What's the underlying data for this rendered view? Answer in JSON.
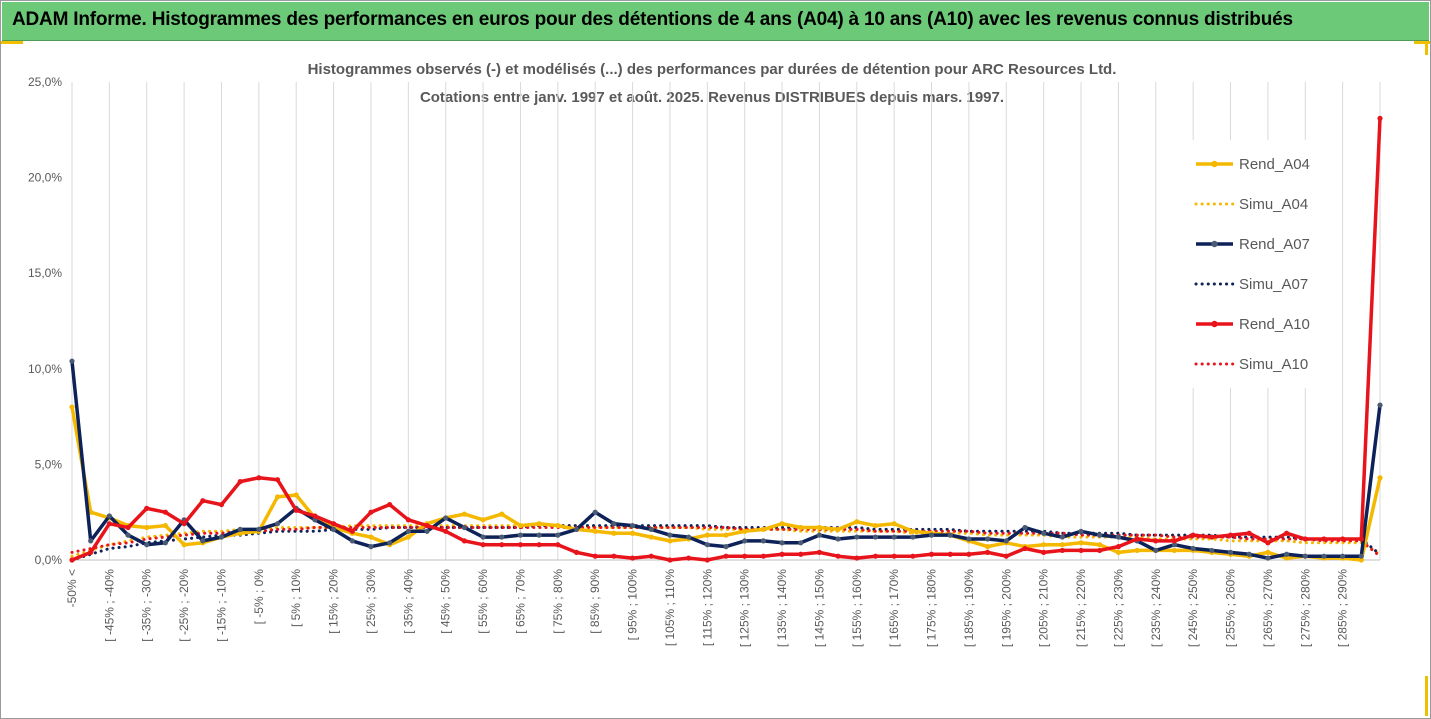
{
  "header": {
    "title": "ADAM Informe. Histogrammes des performances en euros pour des détentions de 4 ans (A04) à 10 ans (A10) avec les revenus connus distribués"
  },
  "colors": {
    "header_bg": "#6cc978",
    "A04": "#f5b800",
    "A07": "#0d2259",
    "A10": "#e8141b",
    "marker_A07": "#4a5b73",
    "grid": "#d9d9d9",
    "axis_text": "#595959",
    "title_text": "#595959"
  },
  "chart_data": {
    "type": "line",
    "title": "Histogrammes observés (-) et modélisés (...) des performances par durées de détention pour ARC Resources Ltd.",
    "subtitle": "Cotations entre janv. 1997 et août. 2025. Revenus DISTRIBUES depuis mars. 1997.",
    "xlabel": "",
    "ylabel": "",
    "ylim": [
      0,
      25
    ],
    "yticks": [
      "0,0%",
      "5,0%",
      "10,0%",
      "15,0%",
      "20,0%",
      "25,0%"
    ],
    "grid": "vertical",
    "legend_position": "right",
    "categories": [
      "-50% <",
      "[ -50% ; -45%",
      "[ -45% ; -40%",
      "[ -40% ; -35%",
      "[ -35% ; -30%",
      "[ -30% ; -25%",
      "[ -25% ; -20%",
      "[ -20% ; -15%",
      "[ -15% ; -10%",
      "[ -10% ; -5%",
      "[ -5% ; 0%",
      "[ 0% ; 5%",
      "[ 5% ; 10%",
      "[ 10% ; 15%",
      "[ 15% ; 20%",
      "[ 20% ; 25%",
      "[ 25% ; 30%",
      "[ 30% ; 35%",
      "[ 35% ; 40%",
      "[ 40% ; 45%",
      "[ 45% ; 50%",
      "[ 50% ; 55%",
      "[ 55% ; 60%",
      "[ 60% ; 65%",
      "[ 65% ; 70%",
      "[ 70% ; 75%",
      "[ 75% ; 80%",
      "[ 80% ; 85%",
      "[ 85% ; 90%",
      "[ 90% ; 95%",
      "[ 95% ; 100%",
      "[ 100% ; 105%",
      "[ 105% ; 110%",
      "[ 110% ; 115%",
      "[ 115% ; 120%",
      "[ 120% ; 125%",
      "[ 125% ; 130%",
      "[ 130% ; 135%",
      "[ 135% ; 140%",
      "[ 140% ; 145%",
      "[ 145% ; 150%",
      "[ 150% ; 155%",
      "[ 155% ; 160%",
      "[ 160% ; 165%",
      "[ 165% ; 170%",
      "[ 170% ; 175%",
      "[ 175% ; 180%",
      "[ 180% ; 185%",
      "[ 185% ; 190%",
      "[ 190% ; 195%",
      "[ 195% ; 200%",
      "[ 200% ; 205%",
      "[ 205% ; 210%",
      "[ 210% ; 215%",
      "[ 215% ; 220%",
      "[ 220% ; 225%",
      "[ 225% ; 230%",
      "[ 230% ; 235%",
      "[ 235% ; 240%",
      "[ 240% ; 245%",
      "[ 245% ; 250%",
      "[ 250% ; 255%",
      "[ 255% ; 260%",
      "[ 260% ; 265%",
      "[ 265% ; 270%",
      "[ 270% ; 275%",
      "[ 275% ; 280%",
      "[ 280% ; 285%",
      "[ 285% ; 290%",
      "[ 290% ; 295%",
      "295% <"
    ],
    "visible_tick_labels": [
      "-50% <",
      "[ -45% ; -40%",
      "[ -35% ; -30%",
      "[ -25% ; -20%",
      "[ -15% ; -10%",
      "[ -5% ; 0%",
      "[ 5% ; 10%",
      "[ 15% ; 20%",
      "[ 25% ; 30%",
      "[ 35% ; 40%",
      "[ 45% ; 50%",
      "[ 55% ; 60%",
      "[ 65% ; 70%",
      "[ 75% ; 80%",
      "[ 85% ; 90%",
      "[ 95% ; 100%",
      "[ 105% ; 110%",
      "[ 115% ; 120%",
      "[ 125% ; 130%",
      "[ 135% ; 140%",
      "[ 145% ; 150%",
      "[ 155% ; 160%",
      "[ 165% ; 170%",
      "[ 175% ; 180%",
      "[ 185% ; 190%",
      "[ 195% ; 200%",
      "[ 205% ; 210%",
      "[ 215% ; 220%",
      "[ 225% ; 230%",
      "[ 235% ; 240%",
      "[ 245% ; 250%",
      "[ 255% ; 260%",
      "[ 265% ; 270%",
      "[ 275% ; 280%",
      "[ 285% ; 290%"
    ],
    "series": [
      {
        "name": "Rend_A04",
        "style": "solid",
        "color": "#f5b800",
        "markers": true,
        "values": [
          8.0,
          2.5,
          2.2,
          1.8,
          1.7,
          1.8,
          0.8,
          0.9,
          1.2,
          1.4,
          1.5,
          3.3,
          3.4,
          2.2,
          1.7,
          1.4,
          1.2,
          0.8,
          1.2,
          1.9,
          2.2,
          2.4,
          2.1,
          2.4,
          1.8,
          1.9,
          1.8,
          1.6,
          1.5,
          1.4,
          1.4,
          1.2,
          1.0,
          1.1,
          1.3,
          1.3,
          1.5,
          1.6,
          1.9,
          1.7,
          1.7,
          1.6,
          2.0,
          1.8,
          1.9,
          1.5,
          1.4,
          1.3,
          1.0,
          0.7,
          0.9,
          0.7,
          0.8,
          0.8,
          0.9,
          0.8,
          0.4,
          0.5,
          0.5,
          0.5,
          0.5,
          0.4,
          0.3,
          0.2,
          0.4,
          0.1,
          0.2,
          0.1,
          0.1,
          0.0,
          4.3
        ]
      },
      {
        "name": "Simu_A04",
        "style": "dotted",
        "color": "#f5b800",
        "markers": false,
        "values": [
          0.2,
          0.5,
          0.8,
          1.0,
          1.2,
          1.3,
          1.4,
          1.5,
          1.5,
          1.6,
          1.6,
          1.7,
          1.7,
          1.7,
          1.7,
          1.8,
          1.8,
          1.8,
          1.8,
          1.8,
          1.8,
          1.8,
          1.8,
          1.8,
          1.8,
          1.8,
          1.8,
          1.8,
          1.7,
          1.7,
          1.7,
          1.7,
          1.7,
          1.7,
          1.6,
          1.6,
          1.6,
          1.6,
          1.6,
          1.5,
          1.5,
          1.5,
          1.5,
          1.5,
          1.5,
          1.4,
          1.4,
          1.4,
          1.4,
          1.3,
          1.3,
          1.3,
          1.3,
          1.2,
          1.2,
          1.2,
          1.2,
          1.2,
          1.1,
          1.1,
          1.1,
          1.1,
          1.0,
          1.0,
          1.0,
          1.0,
          0.9,
          0.9,
          0.9,
          0.9,
          0.3
        ]
      },
      {
        "name": "Rend_A07",
        "style": "solid",
        "color": "#0d2259",
        "markers": true,
        "values": [
          10.4,
          1.0,
          2.3,
          1.3,
          0.8,
          0.9,
          2.1,
          1.0,
          1.2,
          1.6,
          1.6,
          1.9,
          2.7,
          2.1,
          1.6,
          1.0,
          0.7,
          0.9,
          1.5,
          1.5,
          2.2,
          1.7,
          1.2,
          1.2,
          1.3,
          1.3,
          1.3,
          1.6,
          2.5,
          1.9,
          1.8,
          1.6,
          1.3,
          1.2,
          0.8,
          0.7,
          1.0,
          1.0,
          0.9,
          0.9,
          1.3,
          1.1,
          1.2,
          1.2,
          1.2,
          1.2,
          1.3,
          1.3,
          1.1,
          1.1,
          1.0,
          1.7,
          1.4,
          1.2,
          1.5,
          1.3,
          1.2,
          1.0,
          0.5,
          0.8,
          0.6,
          0.5,
          0.4,
          0.3,
          0.1,
          0.3,
          0.2,
          0.2,
          0.2,
          0.2,
          8.1
        ]
      },
      {
        "name": "Simu_A07",
        "style": "dotted",
        "color": "#0d2259",
        "markers": false,
        "values": [
          0.0,
          0.3,
          0.6,
          0.7,
          0.9,
          1.0,
          1.1,
          1.2,
          1.3,
          1.3,
          1.4,
          1.5,
          1.5,
          1.5,
          1.6,
          1.6,
          1.6,
          1.7,
          1.7,
          1.7,
          1.7,
          1.7,
          1.7,
          1.7,
          1.7,
          1.8,
          1.8,
          1.8,
          1.8,
          1.8,
          1.8,
          1.8,
          1.8,
          1.8,
          1.8,
          1.7,
          1.7,
          1.7,
          1.7,
          1.7,
          1.7,
          1.7,
          1.7,
          1.6,
          1.6,
          1.6,
          1.6,
          1.6,
          1.5,
          1.5,
          1.5,
          1.5,
          1.5,
          1.4,
          1.4,
          1.4,
          1.4,
          1.3,
          1.3,
          1.3,
          1.3,
          1.3,
          1.2,
          1.2,
          1.2,
          1.2,
          1.1,
          1.1,
          1.1,
          1.1,
          0.3
        ]
      },
      {
        "name": "Rend_A10",
        "style": "solid",
        "color": "#e8141b",
        "markers": true,
        "values": [
          0.0,
          0.4,
          1.9,
          1.7,
          2.7,
          2.5,
          1.9,
          3.1,
          2.9,
          4.1,
          4.3,
          4.2,
          2.6,
          2.3,
          1.9,
          1.5,
          2.5,
          2.9,
          2.1,
          1.8,
          1.5,
          1.0,
          0.8,
          0.8,
          0.8,
          0.8,
          0.8,
          0.4,
          0.2,
          0.2,
          0.1,
          0.2,
          0.0,
          0.1,
          0.0,
          0.2,
          0.2,
          0.2,
          0.3,
          0.3,
          0.4,
          0.2,
          0.1,
          0.2,
          0.2,
          0.2,
          0.3,
          0.3,
          0.3,
          0.4,
          0.2,
          0.6,
          0.4,
          0.5,
          0.5,
          0.5,
          0.7,
          1.1,
          1.0,
          1.0,
          1.3,
          1.2,
          1.3,
          1.4,
          0.9,
          1.4,
          1.1,
          1.1,
          1.1,
          1.1,
          23.1
        ]
      },
      {
        "name": "Simu_A10",
        "style": "dotted",
        "color": "#e8141b",
        "markers": false,
        "values": [
          0.4,
          0.6,
          0.8,
          0.9,
          1.1,
          1.2,
          1.3,
          1.4,
          1.4,
          1.5,
          1.5,
          1.6,
          1.6,
          1.7,
          1.7,
          1.7,
          1.7,
          1.7,
          1.7,
          1.7,
          1.7,
          1.7,
          1.7,
          1.7,
          1.7,
          1.7,
          1.7,
          1.7,
          1.7,
          1.7,
          1.7,
          1.7,
          1.7,
          1.7,
          1.7,
          1.7,
          1.6,
          1.6,
          1.6,
          1.6,
          1.6,
          1.6,
          1.6,
          1.5,
          1.5,
          1.5,
          1.5,
          1.5,
          1.5,
          1.4,
          1.4,
          1.4,
          1.4,
          1.4,
          1.3,
          1.3,
          1.3,
          1.3,
          1.3,
          1.2,
          1.2,
          1.2,
          1.2,
          1.1,
          1.1,
          1.1,
          1.1,
          1.0,
          1.0,
          1.0,
          0.2
        ]
      }
    ]
  }
}
